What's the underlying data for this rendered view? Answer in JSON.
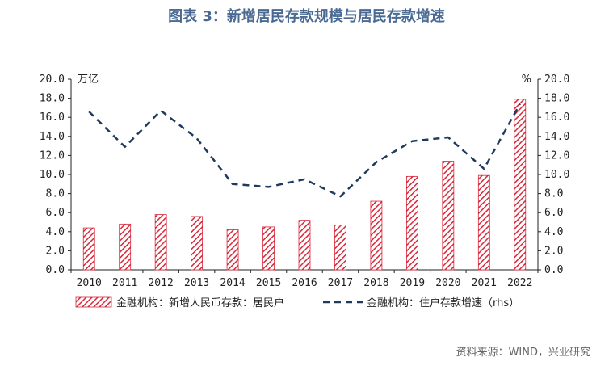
{
  "title": "图表 3：新增居民存款规模与居民存款增速",
  "source": "资料来源：WIND，兴业研究",
  "colors": {
    "bar_stripe": "#d8283a",
    "line": "#1f3a5f",
    "title": "#4a6a93"
  },
  "chart_data": {
    "type": "bar+line",
    "categories": [
      "2010",
      "2011",
      "2012",
      "2013",
      "2014",
      "2015",
      "2016",
      "2017",
      "2018",
      "2019",
      "2020",
      "2021",
      "2022"
    ],
    "y_left": {
      "unit": "万亿",
      "range": [
        0,
        20
      ],
      "ticks": [
        "0.0",
        "2.0",
        "4.0",
        "6.0",
        "8.0",
        "10.0",
        "12.0",
        "14.0",
        "16.0",
        "18.0",
        "20.0"
      ]
    },
    "y_right": {
      "unit": "%",
      "range": [
        0,
        20
      ],
      "ticks": [
        "0.0",
        "2.0",
        "4.0",
        "6.0",
        "8.0",
        "10.0",
        "12.0",
        "14.0",
        "16.0",
        "18.0",
        "20.0"
      ]
    },
    "series": [
      {
        "name": "金融机构：新增人民币存款：居民户",
        "type": "bar",
        "axis": "left",
        "pattern": "diagonal-hatch",
        "values": [
          4.4,
          4.8,
          5.8,
          5.6,
          4.2,
          4.5,
          5.2,
          4.7,
          7.2,
          9.8,
          11.4,
          9.9,
          17.9
        ]
      },
      {
        "name": "金融机构：住户存款增速（rhs）",
        "type": "line",
        "style": "dashed",
        "axis": "right",
        "values": [
          16.6,
          12.9,
          16.7,
          13.8,
          9.0,
          8.7,
          9.5,
          7.7,
          11.3,
          13.5,
          13.9,
          10.6,
          17.4
        ]
      }
    ],
    "grid": false,
    "legend_position": "bottom"
  }
}
